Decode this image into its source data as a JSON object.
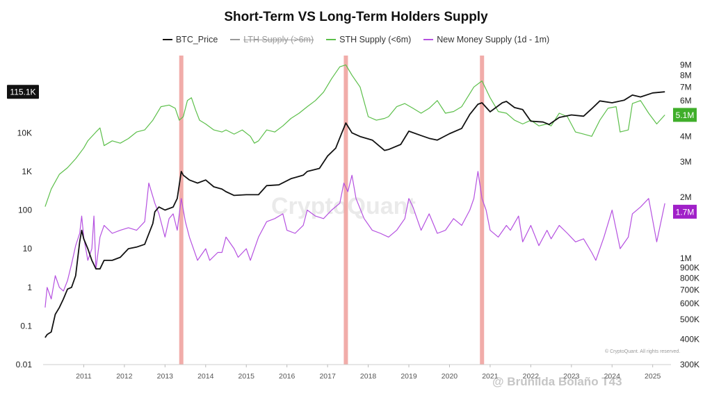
{
  "header": {
    "title": "Short-Term VS Long-Term Holders Supply"
  },
  "watermark": "@ Brunilda Bolaño T43",
  "brand_watermark": "CryptoQuant",
  "copyright": "© CryptoQuant. All rights reserved.",
  "chart_data": {
    "type": "line",
    "title": "Short-Term VS Long-Term Holders Supply",
    "legend": [
      {
        "name": "BTC_Price",
        "color": "#111111",
        "hidden": false
      },
      {
        "name": "LTH Supply (>6m)",
        "color": "#999999",
        "hidden": true
      },
      {
        "name": "STH Supply (<6m)",
        "color": "#5cbf4a",
        "hidden": false
      },
      {
        "name": "New Money Supply (1d - 1m)",
        "color": "#b550e0",
        "hidden": false
      }
    ],
    "x_axis": {
      "ticks": [
        "2011",
        "2012",
        "2013",
        "2014",
        "2015",
        "2016",
        "2017",
        "2018",
        "2019",
        "2020",
        "2021",
        "2022",
        "2023",
        "2024",
        "2025"
      ],
      "range": [
        2010.5,
        2025.95
      ]
    },
    "y_left": {
      "scale": "log",
      "ticks": [
        "0.01",
        "0.1",
        "1",
        "10",
        "100",
        "1K",
        "10K"
      ],
      "range": [
        0.01,
        1000000
      ],
      "current_label": "115.1K",
      "current_value": 115100
    },
    "y_right": {
      "scale": "log",
      "ticks": [
        "300K",
        "400K",
        "500K",
        "600K",
        "700K",
        "800K",
        "900K",
        "1M",
        "2M",
        "3M",
        "4M",
        "5M",
        "6M",
        "7M",
        "8M",
        "9M"
      ],
      "tick_values": [
        300000,
        400000,
        500000,
        600000,
        700000,
        800000,
        900000,
        1000000,
        2000000,
        3000000,
        4000000,
        5000000,
        6000000,
        7000000,
        8000000,
        9000000
      ],
      "range": [
        300000,
        10000000
      ]
    },
    "current_badges": [
      {
        "label": "5.1M",
        "value": 5100000,
        "color": "#3fae2a"
      },
      {
        "label": "1.7M",
        "value": 1700000,
        "color": "#a020c8"
      }
    ],
    "highlight_dates": [
      2013.9,
      2017.95,
      2021.3
    ],
    "highlight_color": "#f0a3a0",
    "series": [
      {
        "name": "BTC_Price",
        "axis": "left",
        "x": [
          2010.55,
          2010.6,
          2010.7,
          2010.8,
          2010.9,
          2011.0,
          2011.1,
          2011.2,
          2011.3,
          2011.4,
          2011.45,
          2011.5,
          2011.6,
          2011.7,
          2011.8,
          2011.9,
          2012.0,
          2012.2,
          2012.4,
          2012.6,
          2012.8,
          2013.0,
          2013.2,
          2013.25,
          2013.35,
          2013.5,
          2013.7,
          2013.8,
          2013.9,
          2013.95,
          2014.1,
          2014.3,
          2014.5,
          2014.7,
          2014.9,
          2015.0,
          2015.2,
          2015.5,
          2015.8,
          2016.0,
          2016.3,
          2016.6,
          2016.9,
          2017.0,
          2017.3,
          2017.5,
          2017.7,
          2017.85,
          2017.95,
          2018.1,
          2018.3,
          2018.6,
          2018.9,
          2019.0,
          2019.3,
          2019.5,
          2019.8,
          2020.0,
          2020.2,
          2020.5,
          2020.8,
          2021.0,
          2021.2,
          2021.3,
          2021.5,
          2021.8,
          2021.9,
          2022.1,
          2022.3,
          2022.5,
          2022.8,
          2022.95,
          2023.2,
          2023.5,
          2023.8,
          2024.0,
          2024.2,
          2024.5,
          2024.8,
          2025.0,
          2025.2,
          2025.5,
          2025.8
        ],
        "values": [
          0.05,
          0.06,
          0.07,
          0.2,
          0.3,
          0.5,
          0.9,
          1,
          2,
          15,
          30,
          18,
          10,
          5,
          3,
          3,
          5,
          5,
          6,
          10,
          11,
          13,
          45,
          90,
          120,
          100,
          120,
          200,
          1000,
          800,
          600,
          500,
          600,
          400,
          350,
          300,
          240,
          250,
          250,
          430,
          450,
          650,
          800,
          1000,
          1200,
          2500,
          4000,
          10000,
          18000,
          10000,
          8000,
          6500,
          3500,
          3700,
          5000,
          11000,
          8500,
          7200,
          6500,
          9500,
          13000,
          30000,
          55000,
          60000,
          35000,
          60000,
          65000,
          45000,
          40000,
          20000,
          19000,
          16500,
          25000,
          29000,
          27000,
          42000,
          67000,
          60000,
          70000,
          95000,
          85000,
          108000,
          115100
        ]
      },
      {
        "name": "STH Supply (<6m)",
        "axis": "right",
        "x": [
          2010.55,
          2010.7,
          2010.9,
          2011.1,
          2011.3,
          2011.5,
          2011.6,
          2011.8,
          2011.9,
          2012.0,
          2012.2,
          2012.4,
          2012.6,
          2012.8,
          2013.0,
          2013.2,
          2013.4,
          2013.6,
          2013.75,
          2013.85,
          2013.95,
          2014.05,
          2014.15,
          2014.25,
          2014.35,
          2014.5,
          2014.7,
          2014.9,
          2015.0,
          2015.2,
          2015.4,
          2015.6,
          2015.7,
          2015.8,
          2016.0,
          2016.2,
          2016.4,
          2016.6,
          2016.8,
          2017.0,
          2017.2,
          2017.4,
          2017.6,
          2017.8,
          2017.95,
          2018.1,
          2018.3,
          2018.5,
          2018.7,
          2018.9,
          2019.0,
          2019.2,
          2019.4,
          2019.6,
          2019.8,
          2020.0,
          2020.2,
          2020.4,
          2020.6,
          2020.8,
          2021.0,
          2021.1,
          2021.3,
          2021.5,
          2021.7,
          2021.9,
          2022.1,
          2022.3,
          2022.5,
          2022.7,
          2022.9,
          2023.0,
          2023.2,
          2023.4,
          2023.6,
          2023.8,
          2024.0,
          2024.2,
          2024.4,
          2024.6,
          2024.7,
          2024.9,
          2025.0,
          2025.2,
          2025.4,
          2025.6,
          2025.8
        ],
        "values": [
          1800000,
          2200000,
          2600000,
          2800000,
          3100000,
          3500000,
          3800000,
          4200000,
          4400000,
          3600000,
          3800000,
          3700000,
          3900000,
          4200000,
          4300000,
          4800000,
          5600000,
          5700000,
          5500000,
          4800000,
          5000000,
          6000000,
          6200000,
          5400000,
          4800000,
          4600000,
          4300000,
          4200000,
          4300000,
          4100000,
          4300000,
          4000000,
          3700000,
          3800000,
          4300000,
          4200000,
          4500000,
          4900000,
          5200000,
          5600000,
          6000000,
          6600000,
          7700000,
          8800000,
          9000000,
          8000000,
          7000000,
          5000000,
          4800000,
          4900000,
          5000000,
          5600000,
          5800000,
          5500000,
          5200000,
          5500000,
          6000000,
          5200000,
          5300000,
          5600000,
          6500000,
          7000000,
          7500000,
          6200000,
          5300000,
          5200000,
          4800000,
          4600000,
          4800000,
          4500000,
          4600000,
          4500000,
          5200000,
          5000000,
          4200000,
          4100000,
          4000000,
          4800000,
          5500000,
          5600000,
          4200000,
          4300000,
          5800000,
          6000000,
          5200000,
          4600000,
          5100000
        ]
      },
      {
        "name": "New Money Supply (1d - 1m)",
        "axis": "left",
        "x": [
          2010.55,
          2010.6,
          2010.7,
          2010.8,
          2010.9,
          2011.0,
          2011.1,
          2011.2,
          2011.3,
          2011.4,
          2011.45,
          2011.5,
          2011.6,
          2011.7,
          2011.75,
          2011.8,
          2011.9,
          2012.0,
          2012.2,
          2012.4,
          2012.6,
          2012.8,
          2013.0,
          2013.1,
          2013.25,
          2013.35,
          2013.5,
          2013.6,
          2013.7,
          2013.8,
          2013.9,
          2014.0,
          2014.1,
          2014.3,
          2014.5,
          2014.6,
          2014.8,
          2014.9,
          2015.0,
          2015.2,
          2015.3,
          2015.5,
          2015.6,
          2015.8,
          2016.0,
          2016.2,
          2016.4,
          2016.5,
          2016.7,
          2016.9,
          2017.0,
          2017.2,
          2017.4,
          2017.6,
          2017.8,
          2017.9,
          2018.0,
          2018.1,
          2018.2,
          2018.4,
          2018.6,
          2018.8,
          2019.0,
          2019.2,
          2019.4,
          2019.5,
          2019.6,
          2019.8,
          2020.0,
          2020.2,
          2020.4,
          2020.6,
          2020.8,
          2021.0,
          2021.1,
          2021.2,
          2021.3,
          2021.4,
          2021.5,
          2021.7,
          2021.9,
          2022.0,
          2022.2,
          2022.3,
          2022.5,
          2022.7,
          2022.9,
          2023.0,
          2023.2,
          2023.4,
          2023.6,
          2023.8,
          2024.0,
          2024.1,
          2024.3,
          2024.5,
          2024.7,
          2024.9,
          2025.0,
          2025.2,
          2025.4,
          2025.6,
          2025.8
        ],
        "values": [
          0.3,
          1,
          0.5,
          2,
          1,
          0.8,
          1.5,
          4,
          12,
          25,
          70,
          20,
          5,
          10,
          70,
          3,
          20,
          40,
          25,
          30,
          35,
          30,
          50,
          500,
          150,
          80,
          20,
          60,
          80,
          30,
          200,
          50,
          20,
          5,
          10,
          5,
          8,
          8,
          20,
          10,
          6,
          10,
          5,
          20,
          50,
          60,
          80,
          30,
          25,
          40,
          100,
          70,
          60,
          100,
          150,
          500,
          300,
          800,
          200,
          60,
          30,
          25,
          20,
          30,
          60,
          200,
          120,
          30,
          80,
          25,
          30,
          60,
          40,
          100,
          200,
          1000,
          200,
          100,
          30,
          20,
          40,
          30,
          70,
          15,
          40,
          12,
          30,
          18,
          40,
          25,
          15,
          18,
          8,
          5,
          20,
          100,
          10,
          20,
          80,
          120,
          200,
          15,
          150
        ]
      }
    ]
  }
}
